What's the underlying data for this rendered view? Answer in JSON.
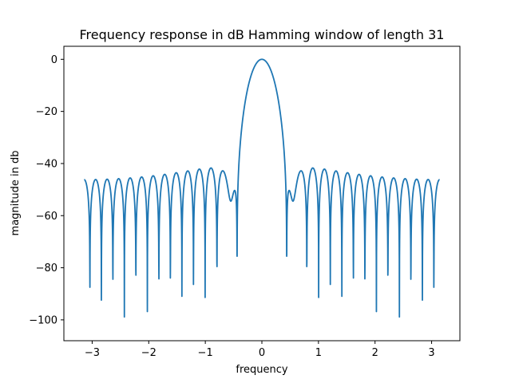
{
  "chart_data": {
    "type": "line",
    "title": "Frequency response in dB Hamming window of length 31",
    "xlabel": "frequency",
    "ylabel": "magnitude in db",
    "xlim": [
      -3.5,
      3.5
    ],
    "ylim": [
      -108,
      5
    ],
    "xticks": [
      -3,
      -2,
      -1,
      0,
      1,
      2,
      3
    ],
    "yticks": [
      0,
      -20,
      -40,
      -60,
      -80,
      -100
    ],
    "xtick_labels": [
      "−3",
      "−2",
      "−1",
      "0",
      "1",
      "2",
      "3"
    ],
    "ytick_labels": [
      "0",
      "−20",
      "−40",
      "−60",
      "−80",
      "−100"
    ],
    "grid": false,
    "series": [
      {
        "color": "#1f77b4",
        "window": "hamming",
        "window_length": 31,
        "x_range": [
          -3.14159,
          3.14159
        ],
        "floor_db": -103
      }
    ]
  }
}
